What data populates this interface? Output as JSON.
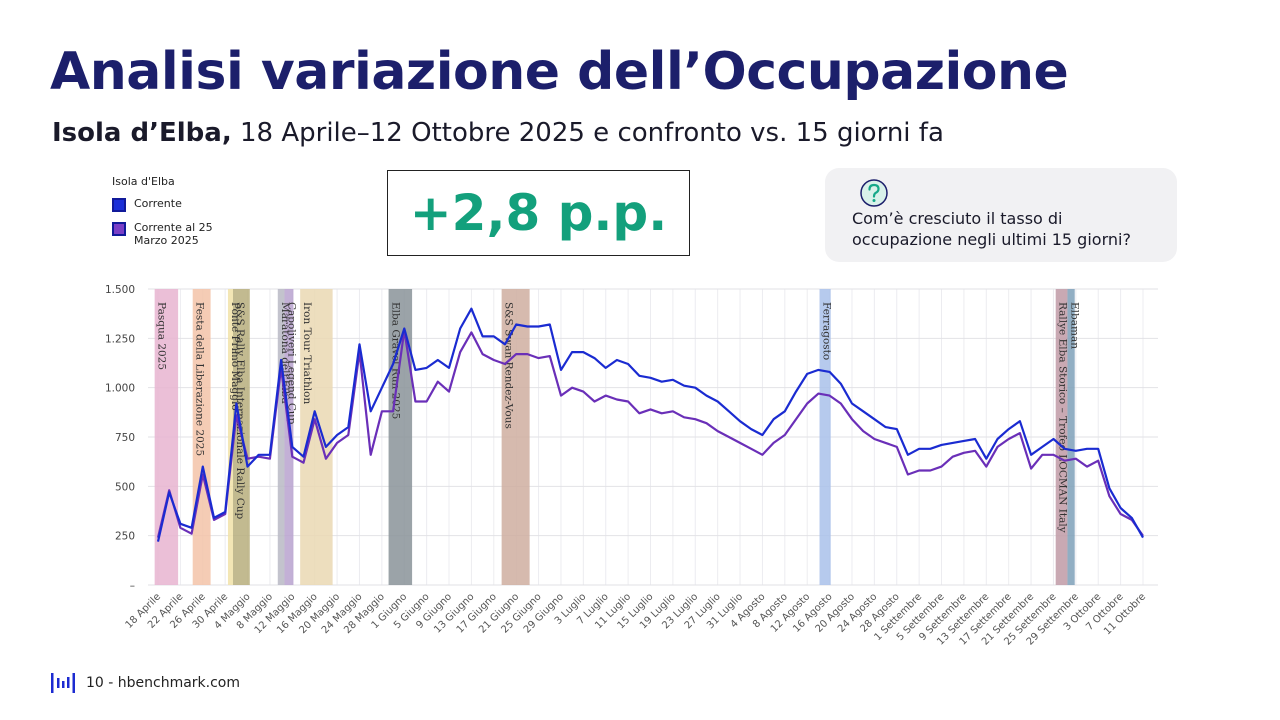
{
  "header": {
    "title": "Analisi variazione dell’Occupazione",
    "subtitle_bold": "Isola d’Elba,",
    "subtitle": "18 Aprile–12 Ottobre 2025 e confronto vs. 15 giorni fa"
  },
  "kpi": {
    "value": "+2,8 p.p."
  },
  "question": {
    "text": "Com’è cresciuto il tasso di occupazione negli ultimi 15 giorni?"
  },
  "footer": {
    "text": "10 - hbenchmark.com"
  },
  "chart_data": {
    "type": "line",
    "legend_title": "Isola d'Elba",
    "categories": [
      "18 Aprile",
      null,
      "22 Aprile",
      null,
      "26 Aprile",
      null,
      "30 Aprile",
      null,
      "4 Maggio",
      null,
      "8 Maggio",
      null,
      "12 Maggio",
      null,
      "16 Maggio",
      null,
      "20 Maggio",
      null,
      "24 Maggio",
      null,
      "28 Maggio",
      null,
      "1 Giugno",
      null,
      "5 Giugno",
      null,
      "9 Giugno",
      null,
      "13 Giugno",
      null,
      "17 Giugno",
      null,
      "21 Giugno",
      null,
      "25 Giugno",
      null,
      "29 Giugno",
      null,
      "3 Luglio",
      null,
      "7 Luglio",
      null,
      "11 Luglio",
      null,
      "15 Luglio",
      null,
      "19 Luglio",
      null,
      "23 Luglio",
      null,
      "27 Luglio",
      null,
      "31 Luglio",
      null,
      "4 Agosto",
      null,
      "8 Agosto",
      null,
      "12 Agosto",
      null,
      "16 Agosto",
      null,
      "20 Agosto",
      null,
      "24 Agosto",
      null,
      "28 Agosto",
      null,
      "1 Settembre",
      null,
      "5 Settembre",
      null,
      "9 Settembre",
      null,
      "13 Settembre",
      null,
      "17 Settembre",
      null,
      "21 Settembre",
      null,
      "25 Settembre",
      null,
      "29 Settembre",
      null,
      "3 Ottobre",
      null,
      "7 Ottobre",
      null,
      "11 Ottobre"
    ],
    "series": [
      {
        "name": "Corrente",
        "color": "#1a2bd1",
        "values": [
          220,
          470,
          310,
          290,
          600,
          340,
          370,
          920,
          600,
          660,
          660,
          1140,
          700,
          650,
          880,
          700,
          760,
          800,
          1220,
          880,
          1000,
          1120,
          1300,
          1090,
          1100,
          1140,
          1100,
          1300,
          1400,
          1260,
          1260,
          1220,
          1320,
          1310,
          1310,
          1320,
          1090,
          1180,
          1180,
          1150,
          1100,
          1140,
          1120,
          1060,
          1050,
          1030,
          1040,
          1010,
          1000,
          960,
          930,
          880,
          830,
          790,
          760,
          840,
          880,
          980,
          1070,
          1090,
          1080,
          1020,
          920,
          880,
          840,
          800,
          790,
          660,
          690,
          690,
          710,
          720,
          730,
          740,
          640,
          740,
          790,
          830,
          660,
          700,
          740,
          690,
          680,
          690,
          690,
          490,
          390,
          340,
          240
        ]
      },
      {
        "name": "Corrente al 25 Marzo 2025",
        "color": "#6a2fb8",
        "values": [
          240,
          480,
          290,
          260,
          560,
          330,
          360,
          860,
          640,
          650,
          640,
          1100,
          650,
          620,
          840,
          640,
          720,
          760,
          1180,
          660,
          880,
          880,
          1290,
          930,
          930,
          1030,
          980,
          1180,
          1280,
          1170,
          1140,
          1120,
          1170,
          1170,
          1150,
          1160,
          960,
          1000,
          980,
          930,
          960,
          940,
          930,
          870,
          890,
          870,
          880,
          850,
          840,
          820,
          780,
          750,
          720,
          690,
          660,
          720,
          760,
          840,
          920,
          970,
          960,
          920,
          840,
          780,
          740,
          720,
          700,
          560,
          580,
          580,
          600,
          650,
          670,
          680,
          600,
          700,
          740,
          770,
          590,
          660,
          660,
          630,
          640,
          600,
          630,
          450,
          360,
          330,
          250
        ]
      }
    ],
    "ylim": [
      0,
      1500
    ],
    "yticks": [
      {
        "value": 0,
        "label": "–"
      },
      250,
      500,
      750,
      {
        "value": 1000,
        "label": "1.000"
      },
      {
        "value": 1250,
        "label": "1.250"
      },
      {
        "value": 1500,
        "label": "1.500"
      }
    ],
    "grid": true,
    "events": [
      {
        "label": "Pasqua 2025",
        "color": "#e8b4d0",
        "x_range": [
          -0.3,
          1.8
        ]
      },
      {
        "label": "Festa della Liberazione 2025",
        "color": "#f3c3a8",
        "x_range": [
          3.1,
          4.7
        ]
      },
      {
        "label": "Ponte Primo Maggio",
        "color": "#f1e2a8",
        "x_range": [
          6.25,
          6.7
        ]
      },
      {
        "label": "S&S Rally Elba Internazionale Rally Cup",
        "color": "#b7ae7c",
        "x_range": [
          6.7,
          8.2
        ]
      },
      {
        "label": "Maratona dell'Elba",
        "color": "#b9b9c4",
        "x_range": [
          10.7,
          11.3
        ]
      },
      {
        "label": "Capoliveri Legend Cup",
        "color": "#b8a2cf",
        "x_range": [
          11.3,
          12.1
        ]
      },
      {
        "label": "Iron Tour Triathlon",
        "color": "#ead8b3",
        "x_range": [
          12.7,
          15.6
        ]
      },
      {
        "label": "Elba Gravel Run 2025",
        "color": "#8a9399",
        "x_range": [
          20.6,
          22.7
        ]
      },
      {
        "label": "S&S Swan Rendez-Vous",
        "color": "#cfaea0",
        "x_range": [
          30.7,
          33.2
        ]
      },
      {
        "label": "Ferragosto",
        "color": "#a9c1ea",
        "x_range": [
          59.1,
          60.1
        ]
      },
      {
        "label": "Rallye Elba Storico – Trofeo LOCMAN Italy",
        "color": "#bf9aa6",
        "x_range": [
          80.2,
          81.25
        ]
      },
      {
        "label": "Elbaman",
        "color": "#7ea0b8",
        "x_range": [
          81.25,
          81.9
        ]
      }
    ]
  }
}
